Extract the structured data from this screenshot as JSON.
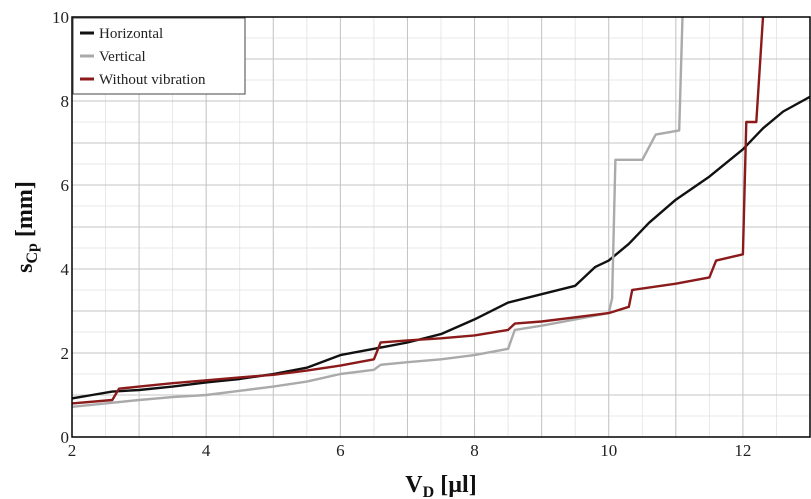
{
  "chart_data": {
    "type": "line",
    "xlabel": "V",
    "xlabel_sub": "D",
    "xlabel_unit": " [µl]",
    "ylabel": "s",
    "ylabel_sub": "Cp",
    "ylabel_unit": " [mm]",
    "xlim": [
      2,
      13
    ],
    "ylim": [
      0,
      10
    ],
    "xticks": [
      2,
      4,
      6,
      8,
      10,
      12
    ],
    "yticks": [
      0,
      2,
      4,
      6,
      8,
      10
    ],
    "grid": true,
    "legend_position": "top-left",
    "series": [
      {
        "name": "Horizontal",
        "color": "#111111",
        "points": [
          [
            2,
            0.92
          ],
          [
            2.3,
            1.0
          ],
          [
            2.6,
            1.08
          ],
          [
            3,
            1.12
          ],
          [
            3.5,
            1.2
          ],
          [
            4,
            1.3
          ],
          [
            4.5,
            1.38
          ],
          [
            5,
            1.5
          ],
          [
            5.5,
            1.65
          ],
          [
            6,
            1.95
          ],
          [
            6.5,
            2.1
          ],
          [
            7,
            2.25
          ],
          [
            7.5,
            2.45
          ],
          [
            8,
            2.8
          ],
          [
            8.5,
            3.2
          ],
          [
            9,
            3.4
          ],
          [
            9.5,
            3.6
          ],
          [
            9.8,
            4.05
          ],
          [
            10,
            4.2
          ],
          [
            10.3,
            4.6
          ],
          [
            10.6,
            5.1
          ],
          [
            11,
            5.65
          ],
          [
            11.5,
            6.2
          ],
          [
            12,
            6.85
          ],
          [
            12.3,
            7.35
          ],
          [
            12.6,
            7.75
          ],
          [
            13,
            8.1
          ]
        ]
      },
      {
        "name": "Vertical",
        "color": "#aaaaaa",
        "points": [
          [
            2,
            0.72
          ],
          [
            2.5,
            0.8
          ],
          [
            3,
            0.88
          ],
          [
            3.5,
            0.95
          ],
          [
            4,
            1.0
          ],
          [
            4.5,
            1.1
          ],
          [
            5,
            1.2
          ],
          [
            5.5,
            1.32
          ],
          [
            6,
            1.5
          ],
          [
            6.5,
            1.6
          ],
          [
            6.6,
            1.72
          ],
          [
            7,
            1.78
          ],
          [
            7.5,
            1.85
          ],
          [
            8,
            1.95
          ],
          [
            8.5,
            2.1
          ],
          [
            8.6,
            2.55
          ],
          [
            9,
            2.65
          ],
          [
            9.5,
            2.8
          ],
          [
            10,
            2.95
          ],
          [
            10.05,
            3.3
          ],
          [
            10.1,
            6.6
          ],
          [
            10.5,
            6.6
          ],
          [
            10.7,
            7.2
          ],
          [
            11.05,
            7.3
          ],
          [
            11.1,
            10
          ]
        ]
      },
      {
        "name": "Without vibration",
        "color": "#8b1a1a",
        "points": [
          [
            2,
            0.8
          ],
          [
            2.6,
            0.88
          ],
          [
            2.7,
            1.15
          ],
          [
            3,
            1.2
          ],
          [
            3.5,
            1.28
          ],
          [
            4,
            1.35
          ],
          [
            4.5,
            1.42
          ],
          [
            5,
            1.48
          ],
          [
            5.5,
            1.58
          ],
          [
            6,
            1.7
          ],
          [
            6.5,
            1.85
          ],
          [
            6.6,
            2.25
          ],
          [
            7,
            2.3
          ],
          [
            7.5,
            2.35
          ],
          [
            8,
            2.42
          ],
          [
            8.5,
            2.55
          ],
          [
            8.6,
            2.7
          ],
          [
            9,
            2.75
          ],
          [
            9.5,
            2.85
          ],
          [
            10,
            2.95
          ],
          [
            10.3,
            3.1
          ],
          [
            10.35,
            3.5
          ],
          [
            11,
            3.65
          ],
          [
            11.5,
            3.8
          ],
          [
            11.6,
            4.2
          ],
          [
            12,
            4.35
          ],
          [
            12.05,
            7.5
          ],
          [
            12.2,
            7.5
          ],
          [
            12.3,
            10
          ]
        ]
      }
    ]
  }
}
